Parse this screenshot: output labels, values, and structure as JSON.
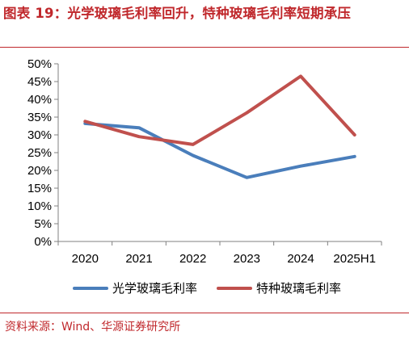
{
  "title": "图表 19：光学玻璃毛利率回升，特种玻璃毛利率短期承压",
  "source": "资料来源：Wind、华源证券研究所",
  "colors": {
    "accent": "#c0282c",
    "series_blue": "#4a7ebb",
    "series_red": "#c0504d",
    "axis": "#808080"
  },
  "chart_data": {
    "type": "line",
    "categories": [
      "2020",
      "2021",
      "2022",
      "2023",
      "2024",
      "2025H1"
    ],
    "y_tick_labels": [
      "0%",
      "5%",
      "10%",
      "15%",
      "20%",
      "25%",
      "30%",
      "35%",
      "40%",
      "45%",
      "50%"
    ],
    "ylim": [
      0,
      50
    ],
    "grid": false,
    "legend_position": "bottom",
    "series": [
      {
        "name": "光学玻璃毛利率",
        "color": "#4a7ebb",
        "values": [
          33.2,
          32.0,
          24.2,
          18.0,
          21.2,
          23.9
        ]
      },
      {
        "name": "特种玻璃毛利率",
        "color": "#c0504d",
        "values": [
          33.8,
          29.5,
          27.3,
          36.2,
          46.5,
          30.0
        ]
      }
    ]
  }
}
